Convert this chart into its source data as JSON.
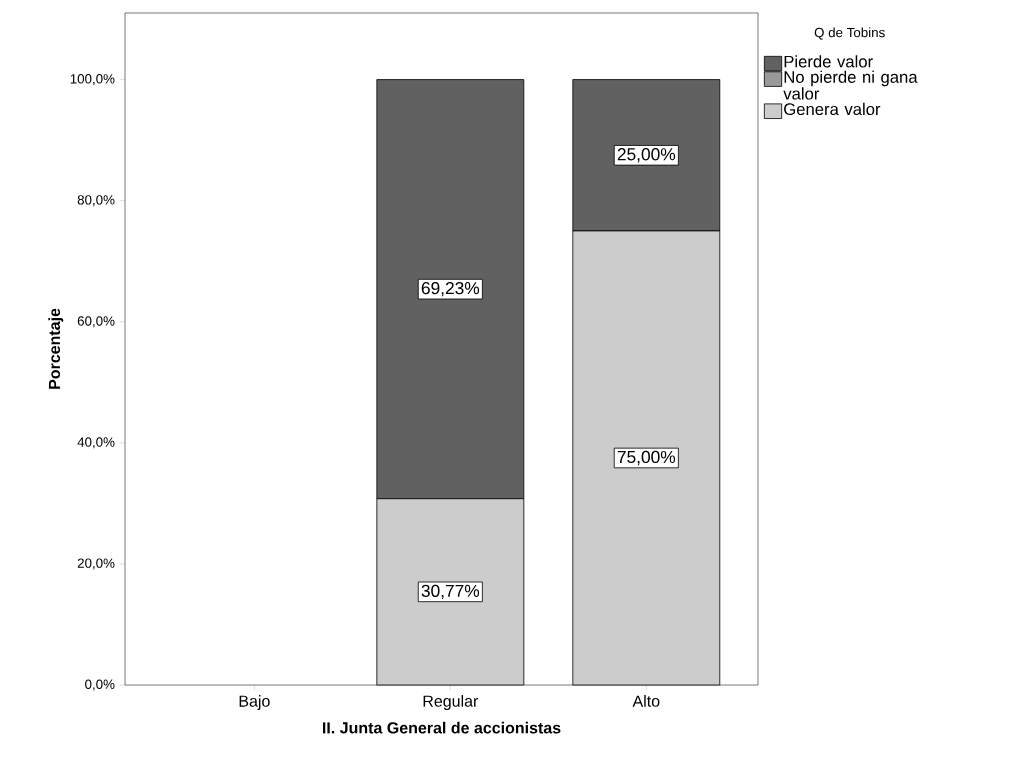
{
  "chart_data": {
    "type": "bar",
    "stacked": true,
    "xlabel": "II. Junta General de accionistas",
    "ylabel": "Porcentaje",
    "legend_title": "Q de Tobins",
    "legend": "top right",
    "categories": [
      "Bajo",
      "Regular",
      "Alto"
    ],
    "series": [
      {
        "name": "Genera valor",
        "color": "#cccccc",
        "values": [
          null,
          30.77,
          75
        ],
        "value_labels": [
          null,
          "30,77%",
          "75,00%"
        ]
      },
      {
        "name": "No pierde ni gana valor",
        "color": "#999999",
        "values": [
          null,
          null,
          null
        ]
      },
      {
        "name": "Pierde valor",
        "color": "#616161",
        "values": [
          null,
          69.23,
          25
        ],
        "value_labels": [
          null,
          "69,23%",
          "25,00%"
        ]
      }
    ],
    "ylim": [
      0,
      111
    ],
    "yticks": [
      {
        "value": 0,
        "label": "0,0%"
      },
      {
        "value": 20,
        "label": "20,0%"
      },
      {
        "value": 40,
        "label": "40,0%"
      },
      {
        "value": 60,
        "label": "60,0%"
      },
      {
        "value": 80,
        "label": "80,0%"
      },
      {
        "value": 100,
        "label": "100,0%"
      }
    ]
  }
}
